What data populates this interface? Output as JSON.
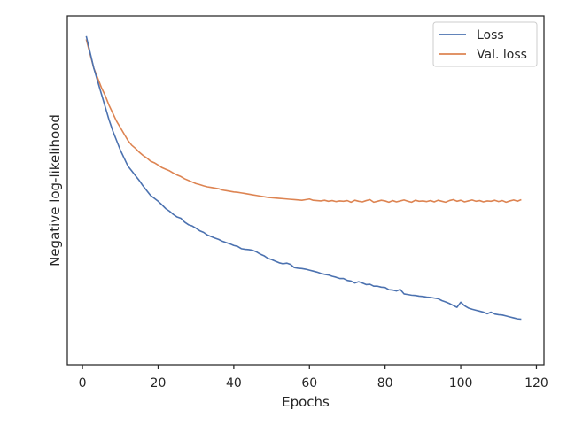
{
  "chart_data": {
    "type": "line",
    "title": "",
    "xlabel": "Epochs",
    "ylabel": "Negative log-likelihood",
    "xlim": [
      -4,
      122
    ],
    "ylim": [
      0,
      1
    ],
    "y_tick_labels_shown": false,
    "x_ticks": [
      0,
      20,
      40,
      60,
      80,
      100,
      120
    ],
    "x_tick_labels": [
      "0",
      "20",
      "40",
      "60",
      "80",
      "100",
      "120"
    ],
    "grid": false,
    "legend_position": "upper right",
    "series": [
      {
        "name": "Loss",
        "color": "#4c72b0",
        "x": [
          1,
          2,
          3,
          4,
          5,
          6,
          7,
          8,
          9,
          10,
          11,
          12,
          13,
          14,
          15,
          16,
          17,
          18,
          19,
          20,
          21,
          22,
          23,
          24,
          25,
          26,
          27,
          28,
          29,
          30,
          31,
          32,
          33,
          34,
          35,
          36,
          37,
          38,
          39,
          40,
          41,
          42,
          43,
          44,
          45,
          46,
          47,
          48,
          49,
          50,
          51,
          52,
          53,
          54,
          55,
          56,
          57,
          58,
          59,
          60,
          61,
          62,
          63,
          64,
          65,
          66,
          67,
          68,
          69,
          70,
          71,
          72,
          73,
          74,
          75,
          76,
          77,
          78,
          79,
          80,
          81,
          82,
          83,
          84,
          85,
          86,
          87,
          88,
          89,
          90,
          91,
          92,
          93,
          94,
          95,
          96,
          97,
          98,
          99,
          100,
          101,
          102,
          103,
          104,
          105,
          106,
          107,
          108,
          109,
          110,
          111,
          112,
          113,
          114,
          115,
          116
        ],
        "values": [
          0.97,
          0.92,
          0.87,
          0.83,
          0.79,
          0.75,
          0.71,
          0.675,
          0.645,
          0.615,
          0.59,
          0.565,
          0.55,
          0.535,
          0.52,
          0.503,
          0.488,
          0.473,
          0.464,
          0.455,
          0.444,
          0.432,
          0.424,
          0.414,
          0.406,
          0.402,
          0.39,
          0.382,
          0.378,
          0.371,
          0.363,
          0.358,
          0.35,
          0.345,
          0.34,
          0.336,
          0.33,
          0.326,
          0.322,
          0.317,
          0.314,
          0.307,
          0.305,
          0.304,
          0.302,
          0.297,
          0.29,
          0.285,
          0.277,
          0.273,
          0.268,
          0.263,
          0.26,
          0.262,
          0.258,
          0.248,
          0.246,
          0.245,
          0.243,
          0.24,
          0.237,
          0.234,
          0.23,
          0.227,
          0.225,
          0.221,
          0.218,
          0.214,
          0.214,
          0.208,
          0.206,
          0.2,
          0.204,
          0.2,
          0.195,
          0.196,
          0.19,
          0.19,
          0.187,
          0.186,
          0.179,
          0.178,
          0.175,
          0.18,
          0.166,
          0.164,
          0.162,
          0.161,
          0.159,
          0.158,
          0.156,
          0.155,
          0.153,
          0.151,
          0.145,
          0.141,
          0.136,
          0.13,
          0.124,
          0.14,
          0.129,
          0.122,
          0.118,
          0.115,
          0.112,
          0.109,
          0.104,
          0.109,
          0.103,
          0.101,
          0.1,
          0.097,
          0.094,
          0.091,
          0.088,
          0.087
        ]
      },
      {
        "name": "Val. loss",
        "color": "#dd8452",
        "x": [
          1,
          2,
          3,
          4,
          5,
          6,
          7,
          8,
          9,
          10,
          11,
          12,
          13,
          14,
          15,
          16,
          17,
          18,
          19,
          20,
          21,
          22,
          23,
          24,
          25,
          26,
          27,
          28,
          29,
          30,
          31,
          32,
          33,
          34,
          35,
          36,
          37,
          38,
          39,
          40,
          41,
          42,
          43,
          44,
          45,
          46,
          47,
          48,
          49,
          50,
          51,
          52,
          53,
          54,
          55,
          56,
          57,
          58,
          59,
          60,
          61,
          62,
          63,
          64,
          65,
          66,
          67,
          68,
          69,
          70,
          71,
          72,
          73,
          74,
          75,
          76,
          77,
          78,
          79,
          80,
          81,
          82,
          83,
          84,
          85,
          86,
          87,
          88,
          89,
          90,
          91,
          92,
          93,
          94,
          95,
          96,
          97,
          98,
          99,
          100,
          101,
          102,
          103,
          104,
          105,
          106,
          107,
          108,
          109,
          110,
          111,
          112,
          113,
          114,
          115,
          116
        ],
        "values": [
          0.96,
          0.915,
          0.87,
          0.84,
          0.81,
          0.785,
          0.755,
          0.73,
          0.705,
          0.685,
          0.665,
          0.645,
          0.63,
          0.62,
          0.608,
          0.598,
          0.59,
          0.58,
          0.575,
          0.568,
          0.56,
          0.555,
          0.55,
          0.543,
          0.537,
          0.532,
          0.525,
          0.52,
          0.515,
          0.51,
          0.507,
          0.503,
          0.5,
          0.498,
          0.496,
          0.494,
          0.49,
          0.488,
          0.486,
          0.484,
          0.483,
          0.481,
          0.479,
          0.477,
          0.475,
          0.473,
          0.471,
          0.469,
          0.467,
          0.466,
          0.465,
          0.464,
          0.463,
          0.462,
          0.461,
          0.46,
          0.459,
          0.458,
          0.46,
          0.462,
          0.458,
          0.457,
          0.456,
          0.458,
          0.455,
          0.457,
          0.454,
          0.456,
          0.455,
          0.457,
          0.452,
          0.458,
          0.455,
          0.453,
          0.457,
          0.46,
          0.452,
          0.455,
          0.458,
          0.456,
          0.452,
          0.457,
          0.453,
          0.456,
          0.459,
          0.455,
          0.452,
          0.458,
          0.455,
          0.456,
          0.454,
          0.457,
          0.453,
          0.458,
          0.455,
          0.452,
          0.457,
          0.46,
          0.455,
          0.458,
          0.453,
          0.456,
          0.459,
          0.455,
          0.457,
          0.453,
          0.456,
          0.455,
          0.458,
          0.454,
          0.457,
          0.452,
          0.456,
          0.459,
          0.455,
          0.46
        ]
      }
    ]
  }
}
